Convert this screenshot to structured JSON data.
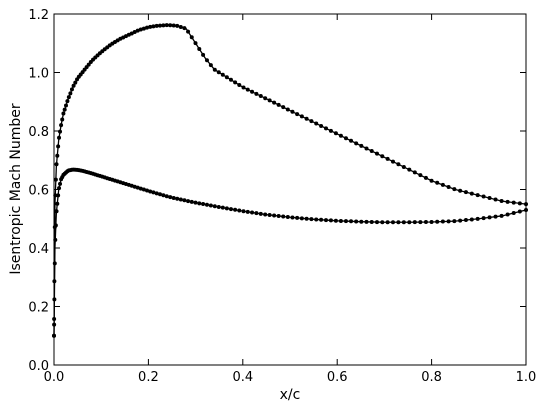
{
  "chart_data": {
    "type": "line",
    "xlabel": "x/c",
    "ylabel": "Isentropic Mach Number",
    "xlim": [
      0.0,
      1.0
    ],
    "ylim": [
      0.0,
      1.2
    ],
    "x_ticks": [
      "0.0",
      "0.2",
      "0.4",
      "0.6",
      "0.8",
      "1.0"
    ],
    "y_ticks": [
      "0.0",
      "0.2",
      "0.4",
      "0.6",
      "0.8",
      "1.0",
      "1.2"
    ],
    "grid": false,
    "legend": "none",
    "series": [
      {
        "x": [
          0.0,
          0.002,
          0.005,
          0.01,
          0.015,
          0.02,
          0.03,
          0.04,
          0.05,
          0.06,
          0.07,
          0.08,
          0.1,
          0.12,
          0.14,
          0.16,
          0.18,
          0.2,
          0.22,
          0.24,
          0.26,
          0.28,
          0.3,
          0.32,
          0.34,
          0.36,
          0.4,
          0.45,
          0.5,
          0.55,
          0.6,
          0.65,
          0.7,
          0.75,
          0.8,
          0.85,
          0.9,
          0.95,
          1.0
        ],
        "y": [
          0.1,
          0.55,
          0.68,
          0.77,
          0.82,
          0.86,
          0.91,
          0.95,
          0.98,
          1.0,
          1.02,
          1.04,
          1.07,
          1.095,
          1.115,
          1.13,
          1.145,
          1.155,
          1.16,
          1.162,
          1.16,
          1.15,
          1.1,
          1.05,
          1.01,
          0.99,
          0.95,
          0.91,
          0.87,
          0.83,
          0.79,
          0.75,
          0.71,
          0.67,
          0.63,
          0.6,
          0.58,
          0.56,
          0.55
        ]
      },
      {
        "x": [
          0.0,
          0.002,
          0.005,
          0.01,
          0.015,
          0.02,
          0.03,
          0.04,
          0.05,
          0.06,
          0.08,
          0.1,
          0.15,
          0.2,
          0.25,
          0.3,
          0.35,
          0.4,
          0.45,
          0.5,
          0.55,
          0.6,
          0.65,
          0.7,
          0.75,
          0.8,
          0.85,
          0.9,
          0.95,
          1.0
        ],
        "y": [
          0.1,
          0.4,
          0.52,
          0.6,
          0.635,
          0.65,
          0.665,
          0.668,
          0.667,
          0.664,
          0.655,
          0.645,
          0.62,
          0.595,
          0.572,
          0.555,
          0.54,
          0.526,
          0.514,
          0.505,
          0.498,
          0.493,
          0.49,
          0.488,
          0.488,
          0.489,
          0.492,
          0.5,
          0.51,
          0.53
        ]
      }
    ]
  }
}
